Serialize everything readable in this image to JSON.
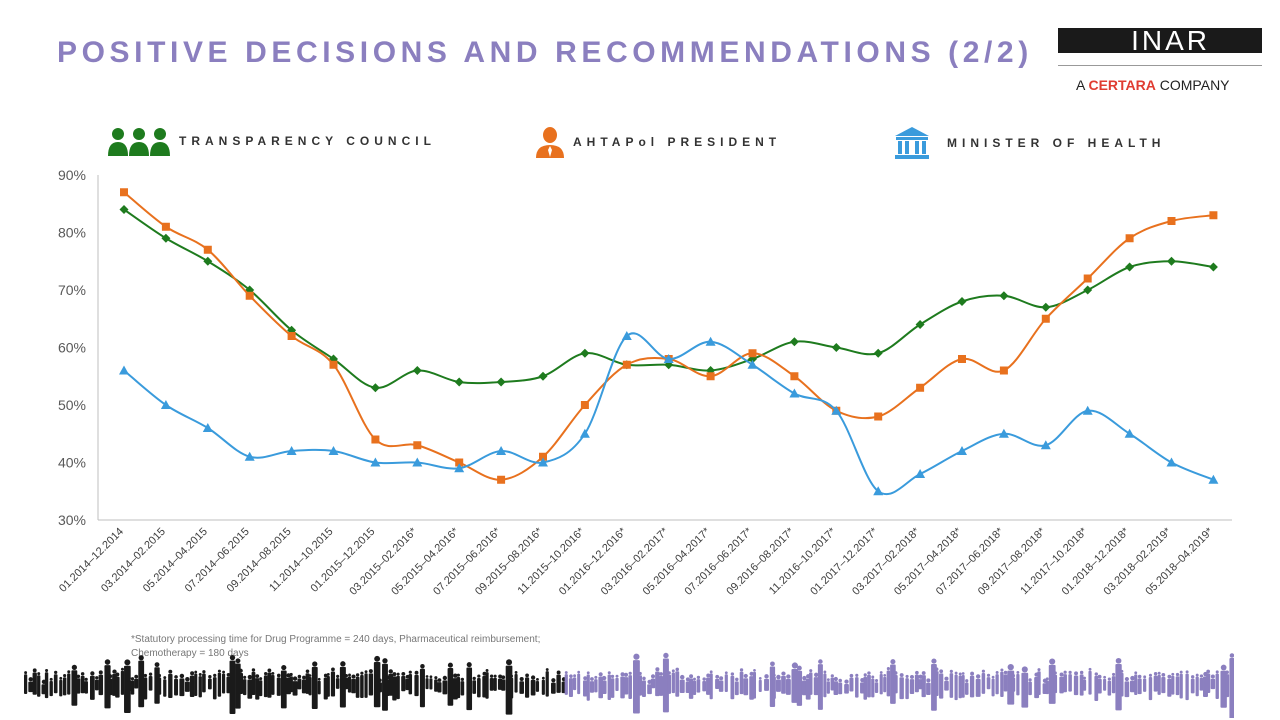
{
  "title": "POSITIVE DECISIONS AND RECOMMENDATIONS (2/2)",
  "logo": {
    "brand": "INAR",
    "prefix": "A ",
    "company": "CERTARA",
    "suffix": " COMPANY"
  },
  "legend": [
    {
      "label": "TRANSPARENCY COUNCIL",
      "icon": "people-group-icon",
      "color": "#1E7B1E"
    },
    {
      "label": "AHTAPol PRESIDENT",
      "icon": "person-icon",
      "color": "#E8711E"
    },
    {
      "label": "MINISTER OF HEALTH",
      "icon": "building-icon",
      "color": "#3A9BDC"
    }
  ],
  "footnote": {
    "line1": "*Statutory processing time for Drug Programme = 240 days, Pharmaceutical reimbursement;",
    "line2": "Chemotherapy = 180 days"
  },
  "chart_data": {
    "type": "line",
    "ylim": [
      30,
      90
    ],
    "yticks": [
      30,
      40,
      50,
      60,
      70,
      80,
      90
    ],
    "y_tick_format": "percent",
    "grid": false,
    "categories": [
      "01.2014–12.2014",
      "03.2014–02.2015",
      "05.2014–04.2015",
      "07.2014–06.2015",
      "09.2014–08.2015",
      "11.2014–10.2015",
      "01.2015–12.2015",
      "03.2015–02.2016*",
      "05.2015–04.2016*",
      "07.2015–06.2016*",
      "09.2015–08.2016*",
      "11.2015–10.2016*",
      "01.2016–12.2016*",
      "03.2016–02.2017*",
      "05.2016–04.2017*",
      "07.2016–06.2017*",
      "09.2016–08.2017*",
      "11.2016–10.2017*",
      "01.2017–12.2017*",
      "03.2017–02.2018*",
      "05.2017–04.2018*",
      "07.2017–06.2018*",
      "09.2017–08.2018*",
      "11.2017–10.2018*",
      "01.2018–12.2018*",
      "03.2018–02.2019*",
      "05.2018–04.2019*"
    ],
    "series": [
      {
        "name": "TRANSPARENCY COUNCIL",
        "color": "#1E7B1E",
        "marker": "diamond",
        "values": [
          84,
          79,
          75,
          70,
          63,
          58,
          53,
          56,
          54,
          54,
          55,
          59,
          57,
          57,
          56,
          58,
          61,
          60,
          59,
          64,
          68,
          69,
          67,
          70,
          74,
          75,
          74
        ]
      },
      {
        "name": "AHTAPol PRESIDENT",
        "color": "#E8711E",
        "marker": "square",
        "values": [
          87,
          81,
          77,
          69,
          62,
          57,
          44,
          43,
          40,
          37,
          41,
          50,
          57,
          58,
          55,
          59,
          55,
          49,
          48,
          53,
          58,
          56,
          65,
          72,
          79,
          82,
          83
        ]
      },
      {
        "name": "MINISTER OF HEALTH",
        "color": "#3A9BDC",
        "marker": "triangle",
        "values": [
          56,
          50,
          46,
          41,
          42,
          42,
          40,
          40,
          39,
          42,
          40,
          45,
          62,
          58,
          61,
          57,
          52,
          49,
          35,
          38,
          42,
          45,
          43,
          49,
          45,
          40,
          37
        ]
      }
    ]
  }
}
